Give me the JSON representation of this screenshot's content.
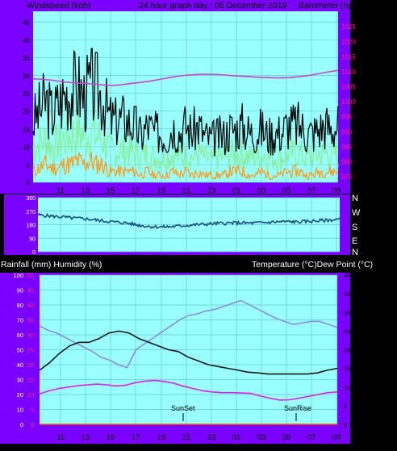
{
  "colors": {
    "frame": "#7a00ff",
    "plot_bg": "#99ffff",
    "grid": "#6ac9c9",
    "title_text": "#000000",
    "axis_left": "#000000",
    "axis_right": "#ff1f8e",
    "wind_gust": "#000000",
    "wind_avg": "#88ee99",
    "wind_low": "#ff9a1a",
    "barometer": "#cc44cc",
    "direction": "#1a4d80",
    "temperature": "#1a1a1a",
    "humidity": "#8888dd",
    "dewpoint": "#dd22dd",
    "rain": "#ff4400"
  },
  "top": {
    "left_title": "Windspeed (kph)",
    "center_title": "24 hour graph day : 05 December 2019",
    "right_title": "Barometer (hpa)"
  },
  "direction_panel": {
    "compass": [
      "N",
      "W",
      "S",
      "E",
      "N"
    ]
  },
  "bottom": {
    "left_title": "Rainfall (mm)  Humidity (%)",
    "right_title": "Temperature (°C)Dew Point (°C)",
    "annotations": [
      "SunSet",
      "SunRise"
    ]
  },
  "chart_data": [
    {
      "type": "line",
      "name": "wind-barometer",
      "x_ticks": [
        "11",
        "13",
        "15",
        "17",
        "19",
        "21",
        "23",
        "01",
        "03",
        "05",
        "07",
        "09"
      ],
      "y_ticks_left": [
        0,
        5,
        10,
        15,
        20,
        25,
        30,
        35,
        40,
        45
      ],
      "y_ticks_right": [
        975,
        980,
        985,
        990,
        995,
        1000,
        1005,
        1010,
        1015,
        1020,
        1025
      ],
      "ylim_left": [
        0,
        48
      ],
      "ylim_right": [
        973,
        1030
      ],
      "grid": true,
      "series": [
        {
          "key": "gust",
          "values": [
            17,
            20,
            23,
            19,
            22,
            25,
            26,
            27,
            24,
            27,
            26,
            24,
            18,
            17,
            18,
            17,
            16,
            13,
            16,
            14,
            14,
            13,
            16,
            14,
            16,
            14,
            16,
            13,
            12,
            13,
            13,
            15,
            15,
            16,
            14,
            14,
            15,
            13,
            14,
            14,
            16,
            16,
            16,
            14,
            14,
            15,
            16,
            15,
            16
          ]
        },
        {
          "key": "avg",
          "values": [
            10,
            11,
            12,
            10,
            11,
            12,
            13,
            14,
            13,
            14,
            13,
            12,
            9,
            9,
            9,
            9,
            8,
            7,
            8,
            7,
            7,
            7,
            8,
            7,
            8,
            7,
            8,
            7,
            6,
            7,
            7,
            8,
            8,
            8,
            7,
            7,
            8,
            7,
            7,
            7,
            8,
            8,
            8,
            7,
            7,
            8,
            8,
            8,
            8
          ]
        },
        {
          "key": "low",
          "values": [
            3,
            4,
            5,
            4,
            4,
            5,
            5,
            6,
            5,
            6,
            5,
            5,
            3,
            3,
            3,
            3,
            3,
            2,
            3,
            2,
            2,
            2,
            3,
            2,
            3,
            2,
            3,
            2,
            2,
            2,
            2,
            3,
            3,
            3,
            2,
            2,
            3,
            2,
            2,
            2,
            3,
            3,
            3,
            2,
            2,
            3,
            3,
            3,
            3
          ]
        },
        {
          "key": "barometer",
          "values": [
            1007.5,
            1007.3,
            1007.0,
            1006.5,
            1006.2,
            1006.0,
            1005.8,
            1005.5,
            1005.3,
            1005.5,
            1006.0,
            1006.3,
            1006.8,
            1007.4,
            1008.0,
            1008.5,
            1008.8,
            1009.0,
            1009.0,
            1008.9,
            1008.6,
            1008.4,
            1008.2,
            1008.0,
            1007.9,
            1007.8,
            1007.9,
            1008.2,
            1008.6,
            1009.2,
            1009.8,
            1010.3
          ]
        }
      ]
    },
    {
      "type": "line",
      "name": "wind-direction",
      "x_ticks": [
        "11",
        "13",
        "15",
        "17",
        "19",
        "21",
        "23",
        "01",
        "03",
        "05",
        "07",
        "09"
      ],
      "y_ticks_left": [
        "360",
        "270",
        "180",
        "90",
        "0"
      ],
      "ylim_left": [
        0,
        360
      ],
      "grid": true,
      "series": [
        {
          "key": "direction",
          "values": [
            245,
            240,
            235,
            232,
            225,
            222,
            218,
            212,
            205,
            200,
            195,
            190,
            180,
            172,
            168,
            165,
            166,
            170,
            175,
            178,
            182,
            185,
            188,
            190,
            192,
            192,
            190,
            192,
            195,
            198,
            200,
            200,
            198,
            202,
            205,
            208,
            212,
            215
          ]
        }
      ]
    },
    {
      "type": "line",
      "name": "temp-humidity",
      "x_ticks": [
        "11",
        "13",
        "15",
        "17",
        "19",
        "21",
        "23",
        "01",
        "03",
        "05",
        "07",
        "09"
      ],
      "y_ticks_left": [
        0,
        10,
        20,
        30,
        40,
        50,
        60,
        70,
        80,
        90,
        100
      ],
      "y_ticks_right": [
        0,
        5,
        10,
        15,
        20,
        25,
        30,
        35,
        40
      ],
      "ylim_left": [
        0,
        100
      ],
      "ylim_right": [
        0,
        40
      ],
      "grid": true,
      "series": [
        {
          "key": "temperature",
          "values": [
            14.5,
            16.5,
            19.0,
            21.0,
            22.0,
            22.0,
            23.0,
            24.5,
            25.0,
            24.5,
            23.0,
            22.0,
            21.0,
            20.0,
            19.5,
            18.0,
            17.0,
            16.0,
            15.5,
            15.0,
            14.5,
            14.0,
            13.8,
            13.5,
            13.5,
            13.5,
            13.5,
            13.5,
            13.8,
            14.5,
            15.0
          ]
        },
        {
          "key": "humidity",
          "values": [
            66,
            63,
            61,
            58,
            55,
            52,
            49,
            45,
            43,
            40,
            38,
            50,
            54,
            58,
            62,
            66,
            70,
            73,
            74,
            76,
            77,
            79,
            81,
            83,
            80,
            77,
            74,
            71,
            69,
            67,
            68,
            69,
            69,
            67,
            65
          ]
        },
        {
          "key": "dewpoint",
          "values": [
            8.2,
            9.0,
            9.6,
            10.0,
            10.4,
            10.6,
            10.8,
            10.6,
            10.3,
            10.5,
            11.2,
            11.6,
            11.8,
            11.5,
            11.0,
            10.2,
            9.6,
            9.0,
            8.7,
            8.5,
            8.5,
            8.4,
            8.3,
            7.6,
            7.0,
            6.5,
            6.6,
            7.0,
            7.5,
            8.0,
            8.5,
            8.7
          ]
        },
        {
          "key": "rain",
          "values": [
            0,
            0,
            0,
            0,
            0,
            0,
            0,
            0,
            0,
            0,
            0,
            0,
            0,
            0,
            0,
            0,
            0,
            0,
            0,
            0,
            0,
            0,
            0,
            0,
            0,
            0,
            0,
            0,
            0,
            0,
            0,
            0
          ]
        }
      ]
    }
  ]
}
